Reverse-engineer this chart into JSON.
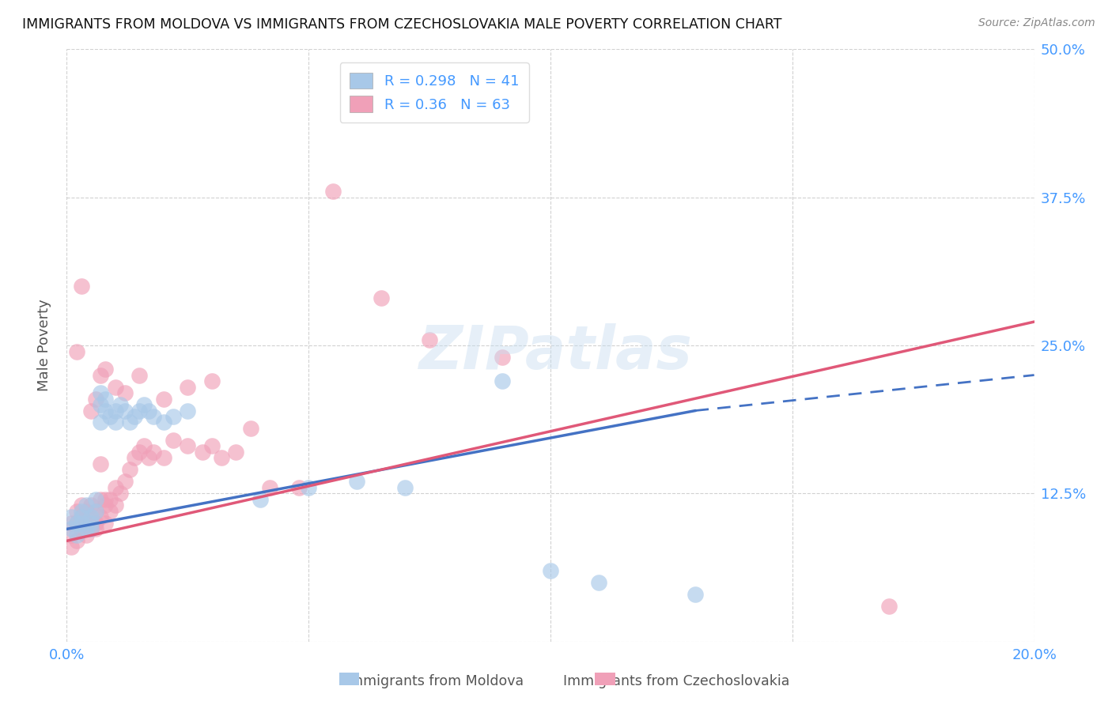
{
  "title": "IMMIGRANTS FROM MOLDOVA VS IMMIGRANTS FROM CZECHOSLOVAKIA MALE POVERTY CORRELATION CHART",
  "source": "Source: ZipAtlas.com",
  "xlabel_moldova": "Immigrants from Moldova",
  "xlabel_czechoslovakia": "Immigrants from Czechoslovakia",
  "ylabel": "Male Poverty",
  "r_moldova": 0.298,
  "n_moldova": 41,
  "r_czechoslovakia": 0.36,
  "n_czechoslovakia": 63,
  "xlim": [
    0.0,
    0.2
  ],
  "ylim": [
    0.0,
    0.5
  ],
  "color_moldova": "#a8c8e8",
  "color_czechoslovakia": "#f0a0b8",
  "line_color_moldova": "#4472c4",
  "line_color_czechoslovakia": "#e05878",
  "background_color": "#ffffff",
  "moldova_x": [
    0.001,
    0.001,
    0.002,
    0.002,
    0.003,
    0.003,
    0.003,
    0.004,
    0.004,
    0.005,
    0.005,
    0.005,
    0.006,
    0.006,
    0.007,
    0.007,
    0.007,
    0.008,
    0.008,
    0.009,
    0.01,
    0.01,
    0.011,
    0.012,
    0.013,
    0.014,
    0.015,
    0.016,
    0.017,
    0.018,
    0.02,
    0.022,
    0.025,
    0.04,
    0.05,
    0.06,
    0.07,
    0.09,
    0.1,
    0.11,
    0.13
  ],
  "moldova_y": [
    0.095,
    0.105,
    0.1,
    0.09,
    0.11,
    0.105,
    0.1,
    0.115,
    0.095,
    0.105,
    0.1,
    0.095,
    0.12,
    0.11,
    0.2,
    0.21,
    0.185,
    0.195,
    0.205,
    0.19,
    0.195,
    0.185,
    0.2,
    0.195,
    0.185,
    0.19,
    0.195,
    0.2,
    0.195,
    0.19,
    0.185,
    0.19,
    0.195,
    0.12,
    0.13,
    0.135,
    0.13,
    0.22,
    0.06,
    0.05,
    0.04
  ],
  "czechoslovakia_x": [
    0.001,
    0.001,
    0.001,
    0.002,
    0.002,
    0.002,
    0.003,
    0.003,
    0.003,
    0.004,
    0.004,
    0.004,
    0.005,
    0.005,
    0.005,
    0.006,
    0.006,
    0.006,
    0.007,
    0.007,
    0.007,
    0.008,
    0.008,
    0.008,
    0.009,
    0.009,
    0.01,
    0.01,
    0.011,
    0.012,
    0.013,
    0.014,
    0.015,
    0.016,
    0.017,
    0.018,
    0.02,
    0.022,
    0.025,
    0.028,
    0.03,
    0.032,
    0.035,
    0.038,
    0.042,
    0.048,
    0.055,
    0.065,
    0.075,
    0.09,
    0.002,
    0.003,
    0.005,
    0.006,
    0.007,
    0.008,
    0.01,
    0.012,
    0.015,
    0.02,
    0.025,
    0.03,
    0.17
  ],
  "czechoslovakia_y": [
    0.09,
    0.1,
    0.08,
    0.1,
    0.11,
    0.085,
    0.095,
    0.115,
    0.105,
    0.1,
    0.09,
    0.11,
    0.1,
    0.095,
    0.115,
    0.11,
    0.1,
    0.095,
    0.15,
    0.12,
    0.105,
    0.115,
    0.12,
    0.1,
    0.11,
    0.12,
    0.13,
    0.115,
    0.125,
    0.135,
    0.145,
    0.155,
    0.16,
    0.165,
    0.155,
    0.16,
    0.155,
    0.17,
    0.165,
    0.16,
    0.165,
    0.155,
    0.16,
    0.18,
    0.13,
    0.13,
    0.38,
    0.29,
    0.255,
    0.24,
    0.245,
    0.3,
    0.195,
    0.205,
    0.225,
    0.23,
    0.215,
    0.21,
    0.225,
    0.205,
    0.215,
    0.22,
    0.03
  ],
  "line_moldova_x0": 0.0,
  "line_moldova_y0": 0.095,
  "line_moldova_x1": 0.13,
  "line_moldova_y1": 0.195,
  "line_moldova_x1_dash": 0.2,
  "line_moldova_y1_dash": 0.225,
  "line_czechoslovakia_x0": 0.0,
  "line_czechoslovakia_y0": 0.085,
  "line_czechoslovakia_x1": 0.2,
  "line_czechoslovakia_y1": 0.27
}
